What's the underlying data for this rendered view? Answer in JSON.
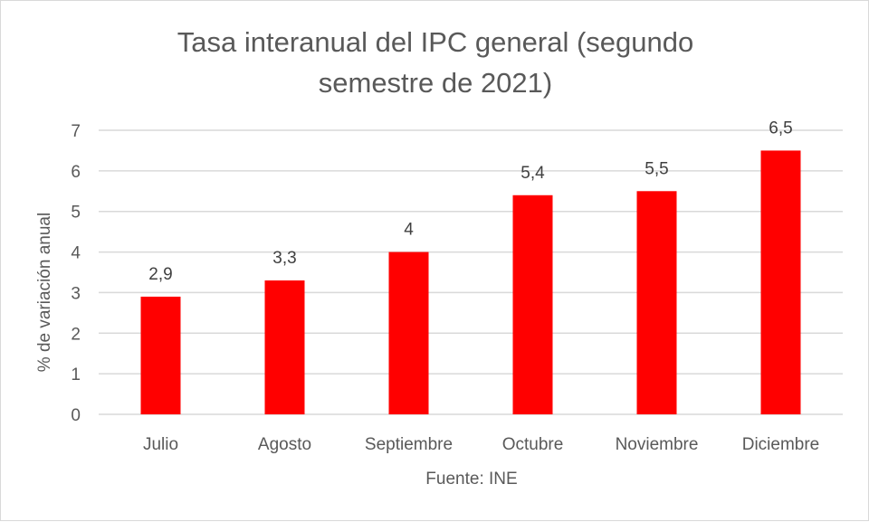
{
  "chart_data": {
    "type": "bar",
    "title_lines": [
      "Tasa interanual del IPC general (segundo",
      "semestre de 2021)"
    ],
    "categories": [
      "Julio",
      "Agosto",
      "Septiembre",
      "Octubre",
      "Noviembre",
      "Diciembre"
    ],
    "values": [
      2.9,
      3.3,
      4,
      5.4,
      5.5,
      6.5
    ],
    "data_labels": [
      "2,9",
      "3,3",
      "4",
      "5,4",
      "5,5",
      "6,5"
    ],
    "ylabel": "% de variación anual",
    "xlabel": "Fuente: INE",
    "ylim": [
      0,
      7
    ],
    "yticks": [
      "0",
      "1",
      "2",
      "3",
      "4",
      "5",
      "6",
      "7"
    ],
    "grid": true,
    "legend": "none",
    "bar_color": "#ff0000",
    "grid_color": "#d9d9d9"
  }
}
